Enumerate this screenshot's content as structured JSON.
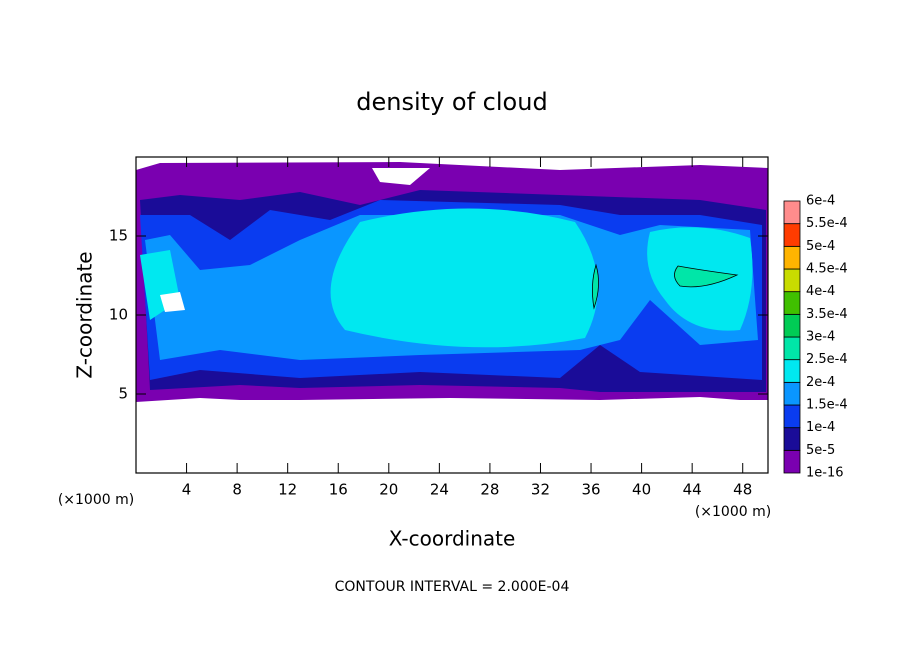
{
  "chart_data": {
    "type": "contour",
    "title": "density of cloud",
    "x_label": "X-coordinate",
    "y_label": "Z-coordinate",
    "x_unit_left": "(×1000 m)",
    "x_unit_right": "(×1000 m)",
    "footnote": "CONTOUR INTERVAL = 2.000E-04",
    "xlim": [
      0,
      50
    ],
    "ylim": [
      0,
      20
    ],
    "xticks": [
      4,
      8,
      12,
      16,
      20,
      24,
      28,
      32,
      36,
      40,
      44,
      48
    ],
    "yticks": [
      5,
      10,
      15
    ],
    "colorbar": {
      "levels": [
        {
          "value": 1e-16,
          "label": "1e-16"
        },
        {
          "value": 5e-05,
          "label": "5e-5"
        },
        {
          "value": 0.0001,
          "label": "1e-4"
        },
        {
          "value": 0.00015,
          "label": "1.5e-4"
        },
        {
          "value": 0.0002,
          "label": "2e-4"
        },
        {
          "value": 0.00025,
          "label": "2.5e-4"
        },
        {
          "value": 0.0003,
          "label": "3e-4"
        },
        {
          "value": 0.00035,
          "label": "3.5e-4"
        },
        {
          "value": 0.0004,
          "label": "4e-4"
        },
        {
          "value": 0.00045,
          "label": "4.5e-4"
        },
        {
          "value": 0.0005,
          "label": "5e-4"
        },
        {
          "value": 0.00055,
          "label": "5.5e-4"
        },
        {
          "value": 0.0006,
          "label": "6e-4"
        }
      ],
      "colors": [
        "#7a00b0",
        "#1a0c98",
        "#0a3cf0",
        "#0a96ff",
        "#00e8f0",
        "#00e6a8",
        "#00cc55",
        "#40c000",
        "#c8dc00",
        "#ffb400",
        "#ff3c00",
        "#ff8c8c"
      ]
    }
  }
}
